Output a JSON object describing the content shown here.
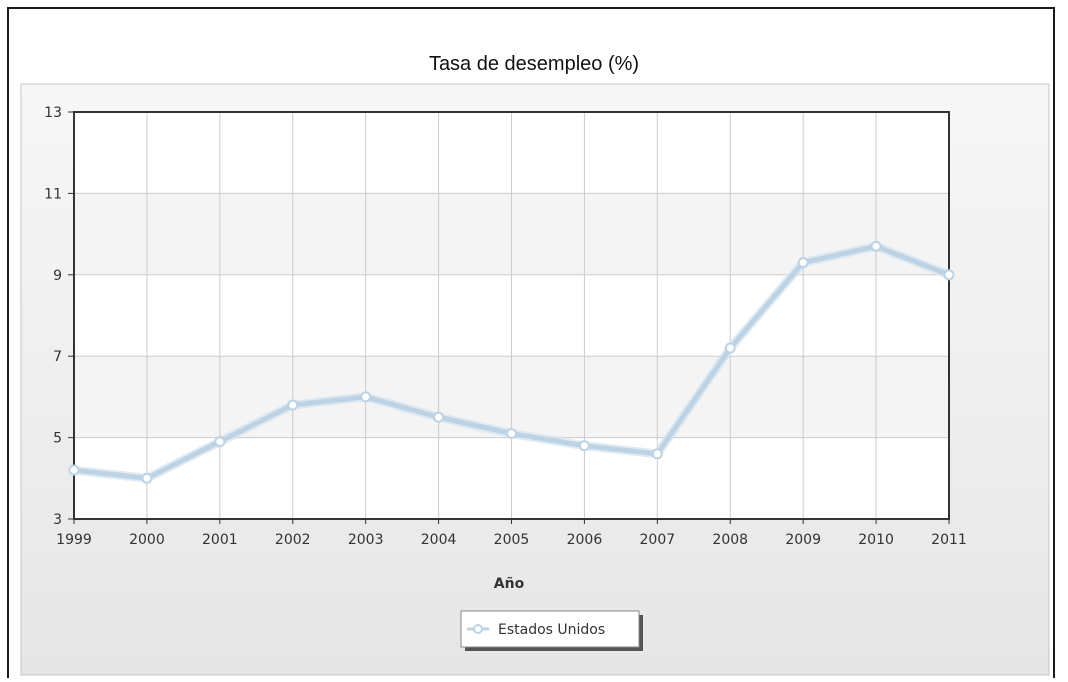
{
  "chart_data": {
    "type": "line",
    "title": "Tasa de desempleo (%)",
    "xlabel": "Año",
    "ylabel": "",
    "categories": [
      "1999",
      "2000",
      "2001",
      "2002",
      "2003",
      "2004",
      "2005",
      "2006",
      "2007",
      "2008",
      "2009",
      "2010",
      "2011"
    ],
    "series": [
      {
        "name": "Estados Unidos",
        "values": [
          4.2,
          4.0,
          4.9,
          5.8,
          6.0,
          5.5,
          5.1,
          4.8,
          4.6,
          7.2,
          9.3,
          9.7,
          9.0
        ],
        "color": "#bcd3e6"
      }
    ],
    "ylim": [
      3,
      13
    ],
    "yticks": [
      3,
      5,
      7,
      9,
      11,
      13
    ],
    "grid": true,
    "legend_position": "bottom-center"
  },
  "colors": {
    "panel_background": "#eeeeee",
    "plot_band_light": "#ffffff",
    "plot_band_alt": "#f4f4f4",
    "grid": "#cccccc",
    "axis": "#333333",
    "line": "#bcd3e6"
  }
}
